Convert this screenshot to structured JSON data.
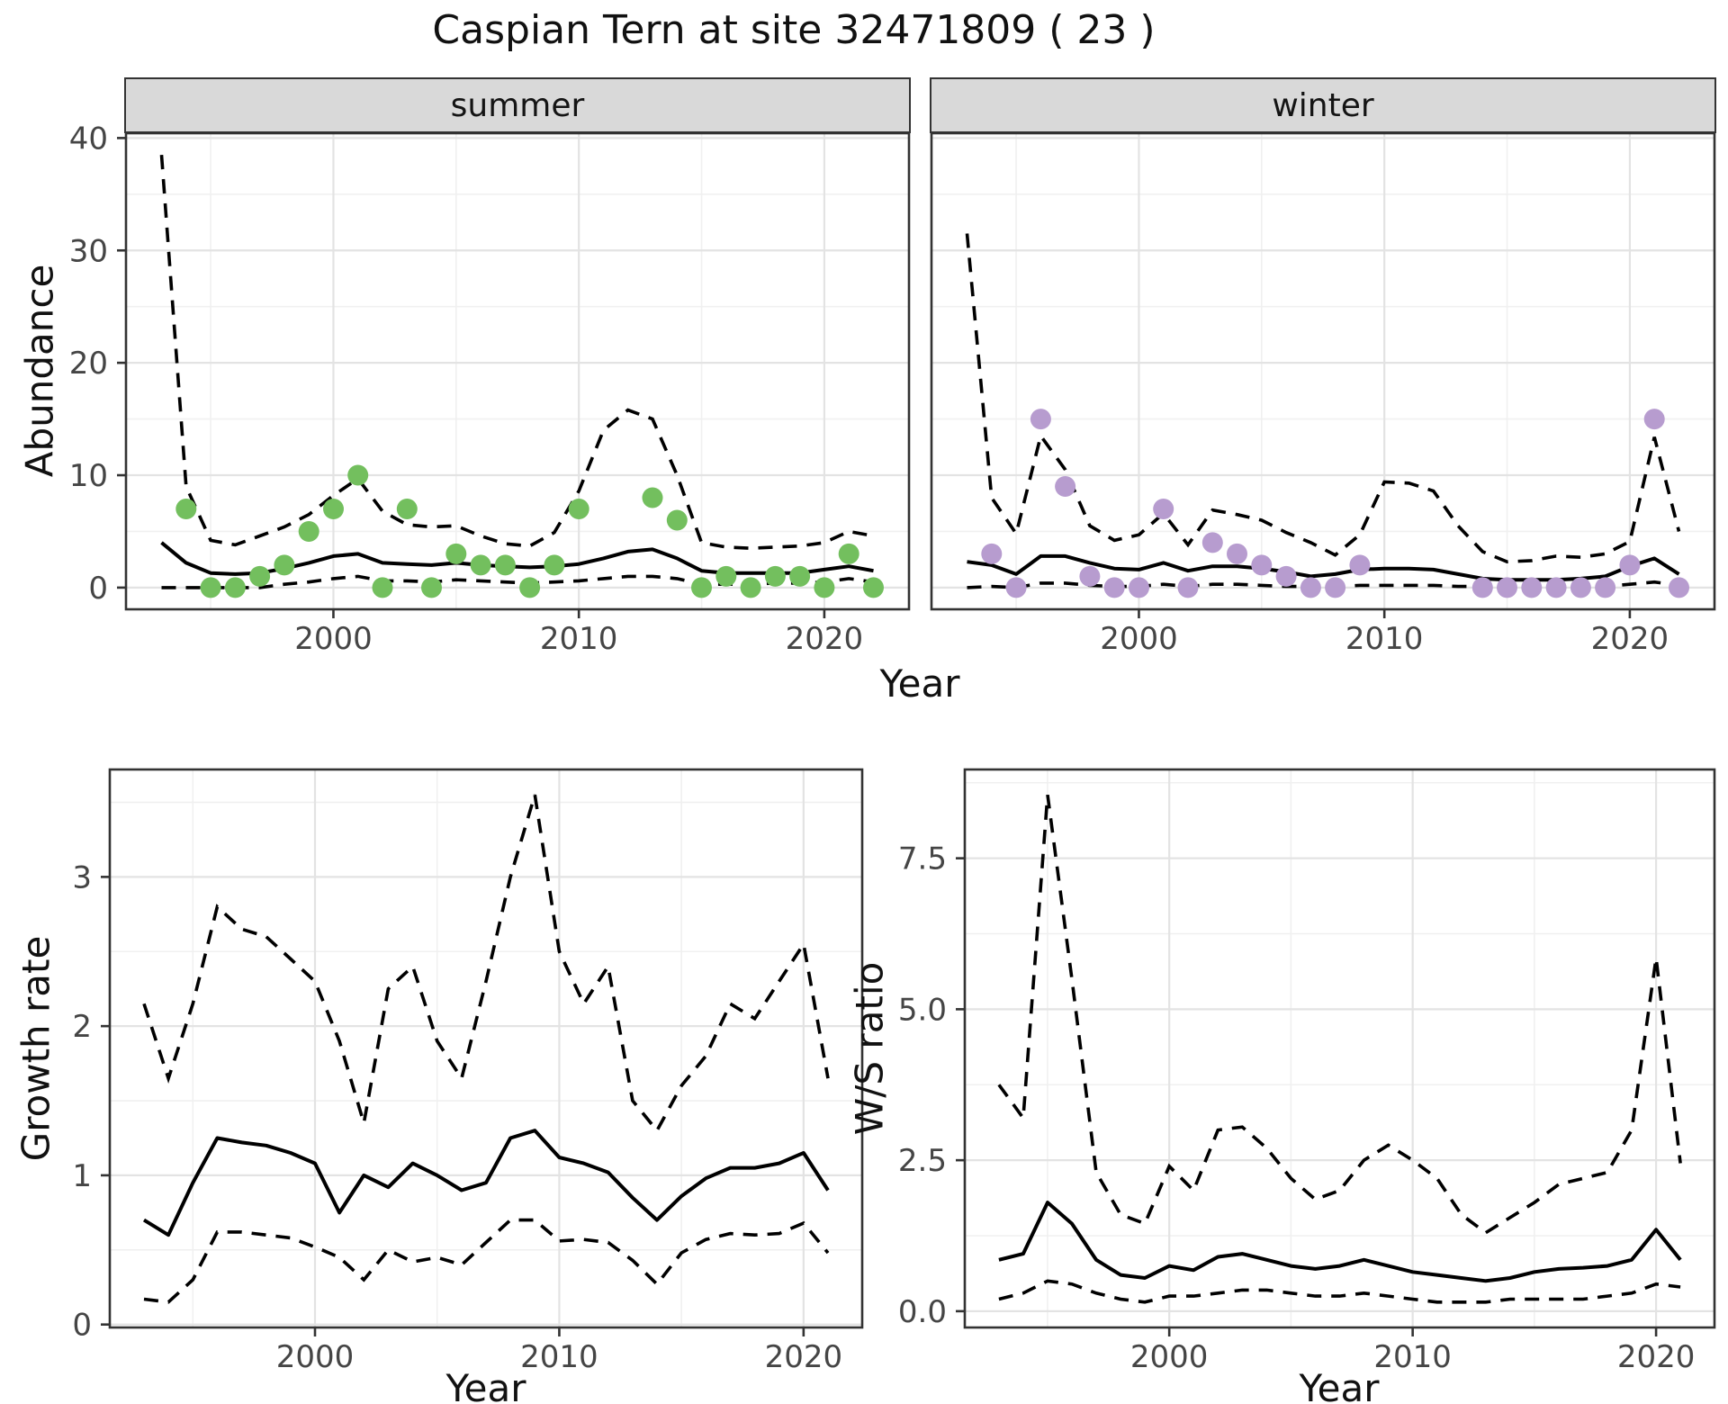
{
  "title": "Caspian Tern at site 32471809 ( 23 )",
  "colors": {
    "summer_point": "#73bf5e",
    "winter_point": "#b79ccf",
    "line": "#000000",
    "grid_major": "#e3e3e3",
    "grid_minor": "#f0f0f0",
    "strip_bg": "#d9d9d9",
    "panel_border": "#333333",
    "axis_text": "#454545"
  },
  "chart_data": [
    {
      "type": "line+scatter",
      "strip": "summer",
      "xlabel": "Year",
      "ylabel": "Abundance",
      "ylim": [
        0,
        40
      ],
      "yticks": [
        0,
        10,
        20,
        30,
        40
      ],
      "ytick_labels": [
        "0",
        "10",
        "20",
        "30",
        "40"
      ],
      "yticks_minor": [
        5,
        15,
        25,
        35
      ],
      "xticks": [
        2000,
        2010,
        2020
      ],
      "xtick_labels": [
        "2000",
        "2010",
        "2020"
      ],
      "point_color": "#73bf5e",
      "points": {
        "years": [
          1994,
          1995,
          1996,
          1997,
          1998,
          1999,
          2000,
          2001,
          2002,
          2003,
          2004,
          2005,
          2006,
          2007,
          2008,
          2009,
          2010,
          2013,
          2014,
          2015,
          2016,
          2017,
          2018,
          2019,
          2020,
          2021,
          2022
        ],
        "values": [
          7,
          0,
          0,
          1,
          2,
          5,
          7,
          10,
          0,
          7,
          0,
          3,
          2,
          2,
          0,
          2,
          7,
          8,
          6,
          0,
          1,
          0,
          1,
          1,
          0,
          3,
          0
        ]
      },
      "median": {
        "years": [
          1993,
          1994,
          1995,
          1996,
          1997,
          1998,
          1999,
          2000,
          2001,
          2002,
          2003,
          2004,
          2005,
          2006,
          2007,
          2008,
          2009,
          2010,
          2011,
          2012,
          2013,
          2014,
          2015,
          2016,
          2017,
          2018,
          2019,
          2020,
          2021,
          2022
        ],
        "values": [
          4.0,
          2.2,
          1.3,
          1.2,
          1.3,
          1.7,
          2.2,
          2.8,
          3.0,
          2.2,
          2.1,
          2.0,
          2.2,
          2.0,
          1.9,
          1.8,
          1.9,
          2.1,
          2.6,
          3.2,
          3.4,
          2.6,
          1.5,
          1.3,
          1.3,
          1.3,
          1.3,
          1.6,
          1.9,
          1.5
        ]
      },
      "upper_ci": {
        "years": [
          1993,
          1994,
          1995,
          1996,
          1997,
          1998,
          1999,
          2000,
          2001,
          2002,
          2003,
          2004,
          2005,
          2006,
          2007,
          2008,
          2009,
          2010,
          2011,
          2012,
          2013,
          2014,
          2015,
          2016,
          2017,
          2018,
          2019,
          2020,
          2021,
          2022
        ],
        "values": [
          38.5,
          9.0,
          4.2,
          3.8,
          4.6,
          5.4,
          6.5,
          8.2,
          9.7,
          6.8,
          5.6,
          5.4,
          5.5,
          4.6,
          3.9,
          3.7,
          4.9,
          8.6,
          14.0,
          15.8,
          15.0,
          10.0,
          4.0,
          3.6,
          3.5,
          3.6,
          3.7,
          4.0,
          5.0,
          4.6
        ]
      },
      "lower_ci": {
        "years": [
          1993,
          1994,
          1995,
          1996,
          1997,
          1998,
          1999,
          2000,
          2001,
          2002,
          2003,
          2004,
          2005,
          2006,
          2007,
          2008,
          2009,
          2010,
          2011,
          2012,
          2013,
          2014,
          2015,
          2016,
          2017,
          2018,
          2019,
          2020,
          2021,
          2022
        ],
        "values": [
          0.0,
          0.0,
          0.0,
          0.0,
          0.0,
          0.3,
          0.5,
          0.8,
          1.0,
          0.6,
          0.6,
          0.5,
          0.7,
          0.6,
          0.5,
          0.4,
          0.5,
          0.6,
          0.8,
          1.0,
          1.0,
          0.8,
          0.3,
          0.3,
          0.3,
          0.4,
          0.4,
          0.5,
          0.8,
          0.5
        ]
      }
    },
    {
      "type": "line+scatter",
      "strip": "winter",
      "xlabel": "Year",
      "ylabel": "Abundance",
      "ylim": [
        0,
        40
      ],
      "yticks": [
        0,
        10,
        20,
        30,
        40
      ],
      "ytick_labels": [
        "0",
        "10",
        "20",
        "30",
        "40"
      ],
      "yticks_minor": [
        5,
        15,
        25,
        35
      ],
      "xticks": [
        2000,
        2010,
        2020
      ],
      "xtick_labels": [
        "2000",
        "2010",
        "2020"
      ],
      "point_color": "#b79ccf",
      "points": {
        "years": [
          1994,
          1995,
          1996,
          1997,
          1998,
          1999,
          2000,
          2001,
          2002,
          2003,
          2004,
          2005,
          2006,
          2007,
          2008,
          2009,
          2014,
          2015,
          2016,
          2017,
          2018,
          2019,
          2020,
          2021,
          2022
        ],
        "values": [
          3,
          0,
          15,
          9,
          1,
          0,
          0,
          7,
          0,
          4,
          3,
          2,
          1,
          0,
          0,
          2,
          0,
          0,
          0,
          0,
          0,
          0,
          2,
          15,
          0
        ]
      },
      "median": {
        "years": [
          1993,
          1994,
          1995,
          1996,
          1997,
          1998,
          1999,
          2000,
          2001,
          2002,
          2003,
          2004,
          2005,
          2006,
          2007,
          2008,
          2009,
          2010,
          2011,
          2012,
          2013,
          2014,
          2015,
          2016,
          2017,
          2018,
          2019,
          2020,
          2021,
          2022
        ],
        "values": [
          2.3,
          2.0,
          1.2,
          2.8,
          2.8,
          2.2,
          1.7,
          1.6,
          2.2,
          1.5,
          1.9,
          1.9,
          1.7,
          1.4,
          1.0,
          1.2,
          1.6,
          1.7,
          1.7,
          1.6,
          1.2,
          0.8,
          0.7,
          0.7,
          0.7,
          0.8,
          1.0,
          1.9,
          2.6,
          1.2
        ]
      },
      "upper_ci": {
        "years": [
          1993,
          1994,
          1995,
          1996,
          1997,
          1998,
          1999,
          2000,
          2001,
          2002,
          2003,
          2004,
          2005,
          2006,
          2007,
          2008,
          2009,
          2010,
          2011,
          2012,
          2013,
          2014,
          2015,
          2016,
          2017,
          2018,
          2019,
          2020,
          2021,
          2022
        ],
        "values": [
          31.5,
          8.0,
          4.8,
          13.5,
          10.5,
          5.5,
          4.2,
          4.7,
          6.6,
          3.8,
          6.9,
          6.5,
          6.0,
          4.9,
          4.0,
          2.9,
          4.7,
          9.4,
          9.3,
          8.6,
          5.5,
          3.2,
          2.3,
          2.4,
          2.8,
          2.7,
          3.0,
          4.1,
          13.4,
          5.0
        ]
      },
      "lower_ci": {
        "years": [
          1993,
          1994,
          1995,
          1996,
          1997,
          1998,
          1999,
          2000,
          2001,
          2002,
          2003,
          2004,
          2005,
          2006,
          2007,
          2008,
          2009,
          2010,
          2011,
          2012,
          2013,
          2014,
          2015,
          2016,
          2017,
          2018,
          2019,
          2020,
          2021,
          2022
        ],
        "values": [
          0.0,
          0.1,
          0.0,
          0.4,
          0.4,
          0.2,
          0.1,
          0.1,
          0.3,
          0.1,
          0.3,
          0.3,
          0.2,
          0.1,
          0.1,
          0.1,
          0.2,
          0.2,
          0.2,
          0.2,
          0.1,
          0.1,
          0.1,
          0.1,
          0.1,
          0.1,
          0.1,
          0.3,
          0.5,
          0.2
        ]
      }
    },
    {
      "type": "line",
      "strip": "",
      "xlabel": "Year",
      "ylabel": "Growth rate",
      "ylim": [
        0,
        3.55
      ],
      "yticks": [
        0,
        1,
        2,
        3
      ],
      "ytick_labels": [
        "0",
        "1",
        "2",
        "3"
      ],
      "yticks_minor": [
        0.5,
        1.5,
        2.5,
        3.5
      ],
      "xticks": [
        2000,
        2010,
        2020
      ],
      "xtick_labels": [
        "2000",
        "2010",
        "2020"
      ],
      "median": {
        "years": [
          1993,
          1994,
          1995,
          1996,
          1997,
          1998,
          1999,
          2000,
          2001,
          2002,
          2003,
          2004,
          2005,
          2006,
          2007,
          2008,
          2009,
          2010,
          2011,
          2012,
          2013,
          2014,
          2015,
          2016,
          2017,
          2018,
          2019,
          2020,
          2021
        ],
        "values": [
          0.7,
          0.6,
          0.95,
          1.25,
          1.22,
          1.2,
          1.15,
          1.08,
          0.75,
          1.0,
          0.92,
          1.08,
          1.0,
          0.9,
          0.95,
          1.25,
          1.3,
          1.12,
          1.08,
          1.02,
          0.85,
          0.7,
          0.86,
          0.98,
          1.05,
          1.05,
          1.08,
          1.15,
          0.9
        ]
      },
      "upper_ci": {
        "years": [
          1993,
          1994,
          1995,
          1996,
          1997,
          1998,
          1999,
          2000,
          2001,
          2002,
          2003,
          2004,
          2005,
          2006,
          2007,
          2008,
          2009,
          2010,
          2011,
          2012,
          2013,
          2014,
          2015,
          2016,
          2017,
          2018,
          2019,
          2020,
          2021
        ],
        "values": [
          2.15,
          1.65,
          2.15,
          2.8,
          2.65,
          2.6,
          2.45,
          2.3,
          1.9,
          1.35,
          2.25,
          2.4,
          1.9,
          1.65,
          2.3,
          3.0,
          3.55,
          2.5,
          2.15,
          2.4,
          1.5,
          1.3,
          1.6,
          1.8,
          2.15,
          2.05,
          2.3,
          2.55,
          1.65
        ]
      },
      "lower_ci": {
        "years": [
          1993,
          1994,
          1995,
          1996,
          1997,
          1998,
          1999,
          2000,
          2001,
          2002,
          2003,
          2004,
          2005,
          2006,
          2007,
          2008,
          2009,
          2010,
          2011,
          2012,
          2013,
          2014,
          2015,
          2016,
          2017,
          2018,
          2019,
          2020,
          2021
        ],
        "values": [
          0.17,
          0.15,
          0.3,
          0.62,
          0.62,
          0.6,
          0.58,
          0.52,
          0.45,
          0.3,
          0.5,
          0.42,
          0.45,
          0.4,
          0.55,
          0.7,
          0.7,
          0.56,
          0.57,
          0.55,
          0.43,
          0.27,
          0.48,
          0.57,
          0.61,
          0.6,
          0.61,
          0.68,
          0.48
        ]
      }
    },
    {
      "type": "line",
      "strip": "",
      "xlabel": "Year",
      "ylabel": "W/S ratio",
      "ylim": [
        0,
        8.55
      ],
      "yticks": [
        0,
        2.5,
        5.0,
        7.5
      ],
      "ytick_labels": [
        "0.0",
        "2.5",
        "5.0",
        "7.5"
      ],
      "yticks_minor": [
        1.25,
        3.75,
        6.25,
        8.75
      ],
      "xticks": [
        2000,
        2010,
        2020
      ],
      "xtick_labels": [
        "2000",
        "2010",
        "2020"
      ],
      "median": {
        "years": [
          1993,
          1994,
          1995,
          1996,
          1997,
          1998,
          1999,
          2000,
          2001,
          2002,
          2003,
          2004,
          2005,
          2006,
          2007,
          2008,
          2009,
          2010,
          2011,
          2012,
          2013,
          2014,
          2015,
          2016,
          2017,
          2018,
          2019,
          2020,
          2021
        ],
        "values": [
          0.85,
          0.95,
          1.8,
          1.45,
          0.85,
          0.6,
          0.55,
          0.75,
          0.68,
          0.9,
          0.95,
          0.85,
          0.75,
          0.7,
          0.75,
          0.85,
          0.75,
          0.65,
          0.6,
          0.55,
          0.5,
          0.55,
          0.65,
          0.7,
          0.72,
          0.75,
          0.85,
          1.35,
          0.85
        ]
      },
      "upper_ci": {
        "years": [
          1993,
          1994,
          1995,
          1996,
          1997,
          1998,
          1999,
          2000,
          2001,
          2002,
          2003,
          2004,
          2005,
          2006,
          2007,
          2008,
          2009,
          2010,
          2011,
          2012,
          2013,
          2014,
          2015,
          2016,
          2017,
          2018,
          2019,
          2020,
          2021
        ],
        "values": [
          3.75,
          3.2,
          8.55,
          5.5,
          2.3,
          1.6,
          1.45,
          2.4,
          2.0,
          3.0,
          3.05,
          2.7,
          2.2,
          1.85,
          2.0,
          2.5,
          2.75,
          2.5,
          2.2,
          1.6,
          1.3,
          1.55,
          1.8,
          2.1,
          2.2,
          2.3,
          3.0,
          5.85,
          2.45
        ]
      },
      "lower_ci": {
        "years": [
          1993,
          1994,
          1995,
          1996,
          1997,
          1998,
          1999,
          2000,
          2001,
          2002,
          2003,
          2004,
          2005,
          2006,
          2007,
          2008,
          2009,
          2010,
          2011,
          2012,
          2013,
          2014,
          2015,
          2016,
          2017,
          2018,
          2019,
          2020,
          2021
        ],
        "values": [
          0.2,
          0.3,
          0.5,
          0.45,
          0.3,
          0.2,
          0.15,
          0.25,
          0.25,
          0.3,
          0.35,
          0.35,
          0.3,
          0.25,
          0.25,
          0.3,
          0.25,
          0.2,
          0.15,
          0.15,
          0.15,
          0.2,
          0.2,
          0.2,
          0.2,
          0.25,
          0.3,
          0.45,
          0.4
        ]
      }
    }
  ]
}
